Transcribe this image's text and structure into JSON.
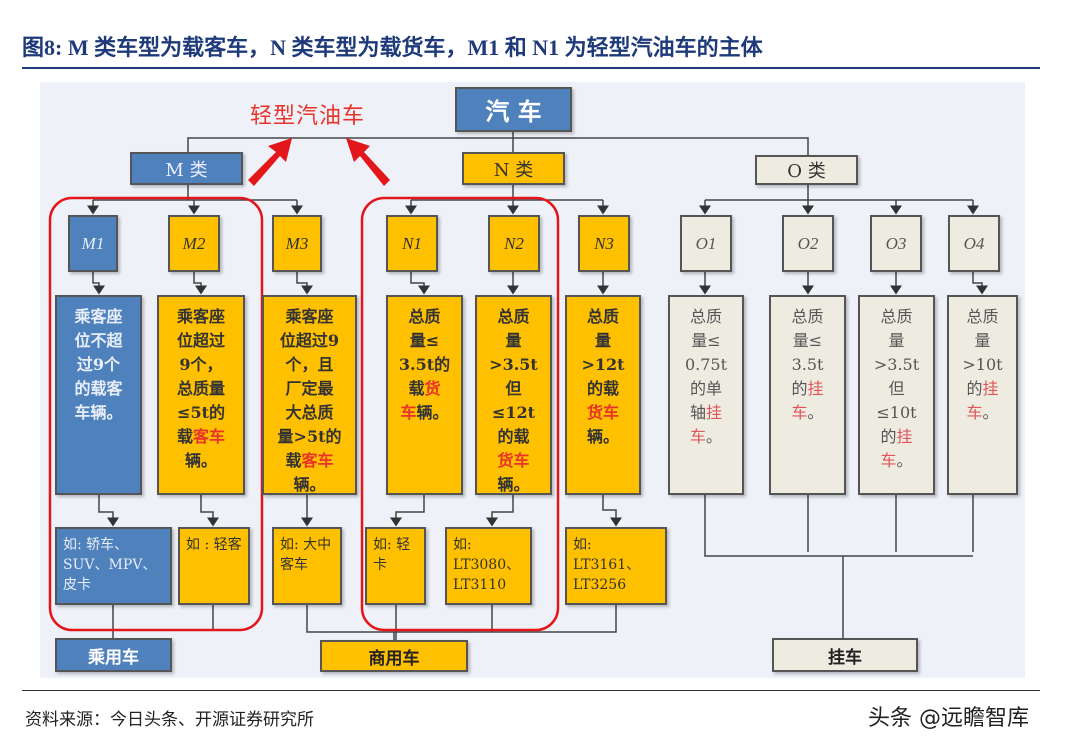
{
  "title": "图8:  M 类车型为载客车，N 类车型为载货车，M1 和 N1 为轻型汽油车的主体",
  "diagram": {
    "root": "汽 车",
    "highlight_label": "轻型汽油车",
    "categories": {
      "M": "M 类",
      "N": "N 类",
      "O": "O 类"
    },
    "codes": {
      "M1": "M1",
      "M2": "M2",
      "M3": "M3",
      "N1": "N1",
      "N2": "N2",
      "N3": "N3",
      "O1": "O1",
      "O2": "O2",
      "O3": "O3",
      "O4": "O4"
    },
    "descriptions": {
      "M1": [
        [
          {
            "t": "乘客座"
          }
        ],
        [
          {
            "t": "位不超"
          }
        ],
        [
          {
            "t": "过9个"
          }
        ],
        [
          {
            "t": "的载客"
          }
        ],
        [
          {
            "t": "车辆。"
          }
        ]
      ],
      "M2": [
        [
          {
            "t": "乘客座"
          }
        ],
        [
          {
            "t": "位超过"
          }
        ],
        [
          {
            "t": "9个，"
          }
        ],
        [
          {
            "t": "总质量"
          }
        ],
        [
          {
            "t": "≤5t的"
          }
        ],
        [
          {
            "t": "载"
          },
          {
            "t": "客车",
            "red": true
          }
        ],
        [
          {
            "t": "辆。"
          }
        ]
      ],
      "M3": [
        [
          {
            "t": "乘客座"
          }
        ],
        [
          {
            "t": "位超过9"
          }
        ],
        [
          {
            "t": "个，且"
          }
        ],
        [
          {
            "t": "厂定最"
          }
        ],
        [
          {
            "t": "大总质"
          }
        ],
        [
          {
            "t": "量>5t的"
          }
        ],
        [
          {
            "t": "载"
          },
          {
            "t": "客车",
            "red": true
          }
        ],
        [
          {
            "t": "辆。"
          }
        ]
      ],
      "N1": [
        [
          {
            "t": "总质"
          }
        ],
        [
          {
            "t": "量≤"
          }
        ],
        [
          {
            "t": "3.5t的"
          }
        ],
        [
          {
            "t": "载"
          },
          {
            "t": "货",
            "red": true
          }
        ],
        [
          {
            "t": "车",
            "red": true
          },
          {
            "t": "辆。"
          }
        ]
      ],
      "N2": [
        [
          {
            "t": "总质"
          }
        ],
        [
          {
            "t": "量"
          }
        ],
        [
          {
            "t": ">3.5t"
          }
        ],
        [
          {
            "t": "但"
          }
        ],
        [
          {
            "t": "≤12t"
          }
        ],
        [
          {
            "t": "的载"
          }
        ],
        [
          {
            "t": "货车",
            "red": true
          }
        ],
        [
          {
            "t": "辆。"
          }
        ]
      ],
      "N3": [
        [
          {
            "t": "总质"
          }
        ],
        [
          {
            "t": "量"
          }
        ],
        [
          {
            "t": ">12t"
          }
        ],
        [
          {
            "t": "的载"
          }
        ],
        [
          {
            "t": "货车",
            "red": true
          }
        ],
        [
          {
            "t": "辆。"
          }
        ]
      ],
      "O1": [
        [
          {
            "t": "总质"
          }
        ],
        [
          {
            "t": "量≤"
          }
        ],
        [
          {
            "t": "0.75t"
          }
        ],
        [
          {
            "t": "的单"
          }
        ],
        [
          {
            "t": "轴"
          },
          {
            "t": "挂",
            "red": true
          }
        ],
        [
          {
            "t": "车",
            "red": true
          },
          {
            "t": "。"
          }
        ]
      ],
      "O2": [
        [
          {
            "t": "总质"
          }
        ],
        [
          {
            "t": "量≤"
          }
        ],
        [
          {
            "t": "3.5t"
          }
        ],
        [
          {
            "t": "的"
          },
          {
            "t": "挂",
            "red": true
          }
        ],
        [
          {
            "t": "车",
            "red": true
          },
          {
            "t": "。"
          }
        ]
      ],
      "O3": [
        [
          {
            "t": "总质"
          }
        ],
        [
          {
            "t": "量"
          }
        ],
        [
          {
            "t": ">3.5t"
          }
        ],
        [
          {
            "t": "但"
          }
        ],
        [
          {
            "t": "≤10t"
          }
        ],
        [
          {
            "t": "的"
          },
          {
            "t": "挂",
            "red": true
          }
        ],
        [
          {
            "t": "车",
            "red": true
          },
          {
            "t": "。"
          }
        ]
      ],
      "O4": [
        [
          {
            "t": "总质"
          }
        ],
        [
          {
            "t": "量"
          }
        ],
        [
          {
            "t": ">10t"
          }
        ],
        [
          {
            "t": "的"
          },
          {
            "t": "挂",
            "red": true
          }
        ],
        [
          {
            "t": "车",
            "red": true
          },
          {
            "t": "。"
          }
        ]
      ]
    },
    "examples": {
      "M1": "如: 轿车、SUV、MPV、皮卡",
      "M2": "如 : 轻客",
      "M3": "如: 大中客车",
      "N1": "如: 轻卡",
      "N2": "如: LT3080、LT3110",
      "N3": "如: LT3161、LT3256"
    },
    "groups": {
      "passenger": "乘用车",
      "commercial": "商用车",
      "trailer": "挂车"
    }
  },
  "footer": {
    "source": "资料来源：今日头条、开源证券研究所",
    "watermark": "头条 @远瞻智库"
  },
  "colors": {
    "blue": "#4f81bd",
    "orange": "#ffc000",
    "gray": "#eeece1",
    "red": "#e8332a"
  }
}
